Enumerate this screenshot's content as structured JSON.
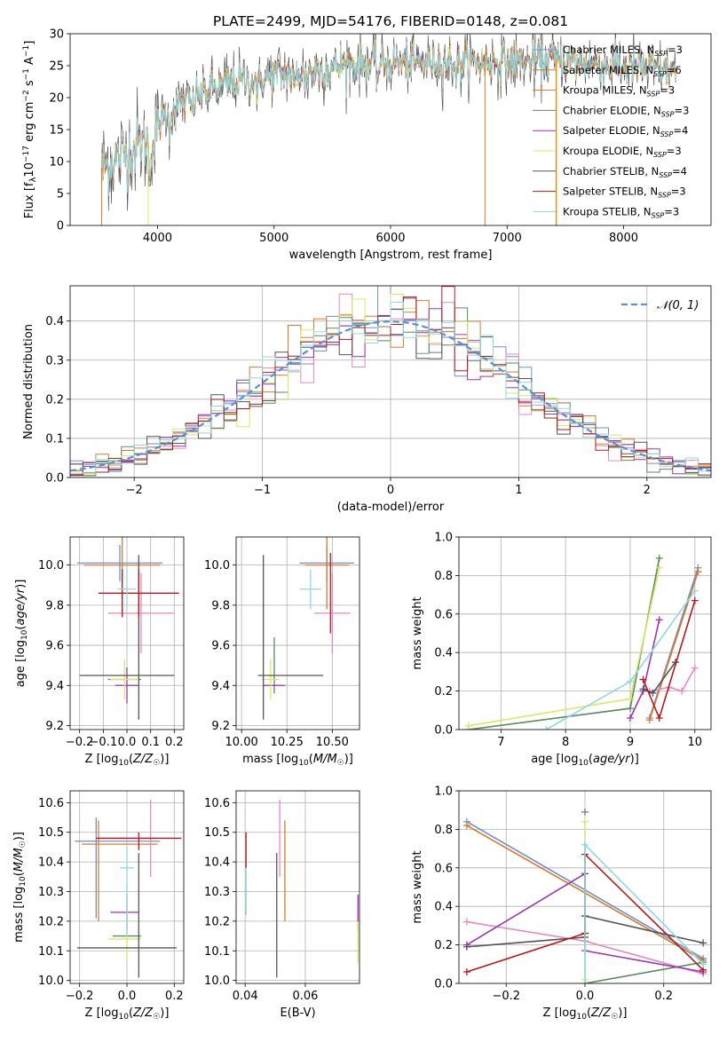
{
  "title": "PLATE=2499, MJD=54176, FIBERID=0148, z=0.081",
  "colors": {
    "c0": "#6f8fd0",
    "c1": "#d97a2b",
    "c2": "#e68ac0",
    "c3": "#5a8a5e",
    "c4": "#9b35b5",
    "c5": "#d8e86a",
    "c6": "#555555",
    "c7": "#b51a1a",
    "c8": "#8fd8e0"
  },
  "chart_data": [
    {
      "id": "spectrum",
      "type": "line",
      "xlabel": "wavelength [Angstrom, rest frame]",
      "ylabel": "Flux [f_λ 10^-17 erg cm^-2 s^-1 A^-1]",
      "xlim": [
        3250,
        8750
      ],
      "ylim": [
        0,
        30
      ],
      "xticks": [
        4000,
        5000,
        6000,
        7000,
        8000
      ],
      "yticks": [
        0,
        5,
        10,
        15,
        20,
        25,
        30
      ],
      "legend_position": "upper right",
      "series": [
        {
          "name": "Chabrier MILES, N_SSP=3",
          "color": "c0"
        },
        {
          "name": "Salpeter MILES, N_SSP=6",
          "color": "c1"
        },
        {
          "name": "Kroupa MILES, N_SSP=3",
          "color": "c1"
        },
        {
          "name": "Chabrier ELODIE, N_SSP=3",
          "color": "c3"
        },
        {
          "name": "Salpeter ELODIE, N_SSP=4",
          "color": "c4"
        },
        {
          "name": "Kroupa ELODIE, N_SSP=3",
          "color": "c5"
        },
        {
          "name": "Chabrier STELIB, N_SSP=4",
          "color": "c6"
        },
        {
          "name": "Salpeter STELIB, N_SSP=3",
          "color": "c7"
        },
        {
          "name": "Kroupa STELIB, N_SSP=3",
          "color": "c8"
        }
      ],
      "continuum": [
        [
          3520,
          9
        ],
        [
          3700,
          11
        ],
        [
          3900,
          13
        ],
        [
          4000,
          16
        ],
        [
          4100,
          18
        ],
        [
          4300,
          20
        ],
        [
          4500,
          21.5
        ],
        [
          4700,
          22.5
        ],
        [
          5000,
          23.5
        ],
        [
          5300,
          24
        ],
        [
          5600,
          25
        ],
        [
          6000,
          25.5
        ],
        [
          6500,
          25.5
        ],
        [
          7000,
          25.5
        ],
        [
          7400,
          26
        ],
        [
          7800,
          25
        ],
        [
          8200,
          24.5
        ],
        [
          8450,
          24
        ]
      ]
    },
    {
      "id": "residuals",
      "type": "histogram",
      "xlabel": "(data-model)/error",
      "ylabel": "Normed distribution",
      "xlim": [
        -2.5,
        2.5
      ],
      "ylim": [
        0,
        0.49
      ],
      "xticks": [
        -2,
        -1,
        0,
        1,
        2
      ],
      "xticklabels": [
        "−2",
        "−1",
        "0",
        "1",
        "2"
      ],
      "yticks": [
        0.0,
        0.1,
        0.2,
        0.3,
        0.4
      ],
      "yticklabels": [
        "0.0",
        "0.1",
        "0.2",
        "0.3",
        "0.4"
      ],
      "bin_width": 0.1,
      "reference": {
        "name": "𝒩(0, 1)",
        "color": "#5a8fd6"
      }
    },
    {
      "id": "age_vs_Z",
      "type": "errorbar",
      "xlabel": "Z [log10(Z/Z☉)]",
      "ylabel": "age [log10(age/yr)]",
      "xlim": [
        -0.24,
        0.24
      ],
      "ylim": [
        9.18,
        10.14
      ],
      "xticks": [
        -0.2,
        -0.1,
        0.0,
        0.1,
        0.2
      ],
      "xticklabels": [
        "−0.2",
        "−0.1",
        "0.0",
        "0.1",
        "0.2"
      ],
      "yticks": [
        9.2,
        9.4,
        9.6,
        9.8,
        10.0
      ],
      "yticklabels": [
        "9.2",
        "9.4",
        "9.6",
        "9.8",
        "10.0"
      ],
      "points": [
        {
          "x": -0.03,
          "xerr": 0.18,
          "y": 10.01,
          "yerr": 0.09,
          "color": "c0"
        },
        {
          "x": -0.02,
          "xerr": 0.16,
          "y": 10.0,
          "yerr": 0.26,
          "color": "c1"
        },
        {
          "x": 0.06,
          "xerr": 0.14,
          "y": 9.76,
          "yerr": 0.2,
          "color": "c2"
        },
        {
          "x": -0.01,
          "xerr": 0.07,
          "y": 9.43,
          "yerr": 0.0,
          "color": "c3"
        },
        {
          "x": 0.0,
          "xerr": 0.05,
          "y": 9.4,
          "yerr": 0.09,
          "color": "c4"
        },
        {
          "x": -0.01,
          "xerr": 0.06,
          "y": 9.43,
          "yerr": 0.1,
          "color": "c5"
        },
        {
          "x": 0.0,
          "xerr": 0.2,
          "y": 9.45,
          "yerr": 0.0,
          "color": "c6"
        },
        {
          "x": 0.05,
          "xerr": 0.0,
          "y": 9.64,
          "yerr": 0.41,
          "color": "c6"
        },
        {
          "x": 0.05,
          "xerr": 0.17,
          "y": 9.86,
          "yerr": 0.12,
          "color": "c7"
        },
        {
          "x": -0.02,
          "xerr": 0.0,
          "y": 9.86,
          "yerr": 0.12,
          "color": "c7"
        },
        {
          "x": 0.0,
          "xerr": 0.04,
          "y": 9.88,
          "yerr": 0.1,
          "color": "c8"
        }
      ]
    },
    {
      "id": "age_vs_mass",
      "type": "errorbar",
      "xlabel": "mass [log10(M/M☉)]",
      "ylabel": "",
      "xlim": [
        9.97,
        10.65
      ],
      "ylim": [
        9.18,
        10.14
      ],
      "xticks": [
        10.0,
        10.25,
        10.5
      ],
      "xticklabels": [
        "10.00",
        "10.25",
        "10.50"
      ],
      "yticks": [
        9.2,
        9.4,
        9.6,
        9.8,
        10.0
      ],
      "yticklabels": [
        "9.2",
        "9.4",
        "9.6",
        "9.8",
        "10.0"
      ],
      "points": [
        {
          "x": 10.47,
          "xerr": 0.15,
          "y": 10.01,
          "yerr": 0.09,
          "color": "c0"
        },
        {
          "x": 10.47,
          "xerr": 0.12,
          "y": 10.0,
          "yerr": 0.22,
          "color": "c1"
        },
        {
          "x": 10.5,
          "xerr": 0.1,
          "y": 9.76,
          "yerr": 0.2,
          "color": "c2"
        },
        {
          "x": 10.18,
          "xerr": 0.0,
          "y": 9.5,
          "yerr": 0.14,
          "color": "c3"
        },
        {
          "x": 10.18,
          "xerr": 0.06,
          "y": 9.4,
          "yerr": 0.0,
          "color": "c4"
        },
        {
          "x": 10.16,
          "xerr": 0.05,
          "y": 9.43,
          "yerr": 0.1,
          "color": "c5"
        },
        {
          "x": 10.27,
          "xerr": 0.18,
          "y": 9.45,
          "yerr": 0.0,
          "color": "c6"
        },
        {
          "x": 10.12,
          "xerr": 0.0,
          "y": 9.64,
          "yerr": 0.41,
          "color": "c6"
        },
        {
          "x": 10.49,
          "xerr": 0.0,
          "y": 9.86,
          "yerr": 0.2,
          "color": "c7"
        },
        {
          "x": 10.38,
          "xerr": 0.06,
          "y": 9.88,
          "yerr": 0.1,
          "color": "c8"
        }
      ]
    },
    {
      "id": "weight_vs_age",
      "type": "line",
      "xlabel": "age [log10(age/yr)]",
      "ylabel": "mass weight",
      "xlim": [
        6.35,
        10.25
      ],
      "ylim": [
        0,
        1
      ],
      "xticks": [
        7,
        8,
        9,
        10
      ],
      "xticklabels": [
        "7",
        "8",
        "9",
        "10"
      ],
      "yticks": [
        0.0,
        0.2,
        0.4,
        0.6,
        0.8,
        1.0
      ],
      "yticklabels": [
        "0.0",
        "0.2",
        "0.4",
        "0.6",
        "0.8",
        "1.0"
      ],
      "series": [
        {
          "color": "c0",
          "x": [
            9.3,
            10.05
          ],
          "y": [
            0.06,
            0.84
          ]
        },
        {
          "color": "c1",
          "x": [
            9.3,
            10.05
          ],
          "y": [
            0.05,
            0.82
          ]
        },
        {
          "color": "c2",
          "x": [
            9.3,
            9.6,
            9.8,
            10.0
          ],
          "y": [
            0.2,
            0.22,
            0.2,
            0.32
          ]
        },
        {
          "color": "c3",
          "x": [
            6.5,
            9.0,
            9.45
          ],
          "y": [
            0.0,
            0.11,
            0.89
          ]
        },
        {
          "color": "c4",
          "x": [
            9.0,
            9.2,
            9.45
          ],
          "y": [
            0.06,
            0.2,
            0.57
          ]
        },
        {
          "color": "c5",
          "x": [
            6.5,
            9.0,
            9.45
          ],
          "y": [
            0.02,
            0.16,
            0.84
          ]
        },
        {
          "color": "c6",
          "x": [
            9.2,
            9.35,
            9.7
          ],
          "y": [
            0.21,
            0.19,
            0.35
          ]
        },
        {
          "color": "c7",
          "x": [
            9.2,
            9.45,
            10.0
          ],
          "y": [
            0.26,
            0.06,
            0.67
          ]
        },
        {
          "color": "c8",
          "x": [
            7.7,
            9.0,
            10.0
          ],
          "y": [
            0.0,
            0.25,
            0.72
          ]
        }
      ]
    },
    {
      "id": "mass_vs_Z",
      "type": "errorbar",
      "xlabel": "Z [log10(Z/Z☉)]",
      "ylabel": "mass [log10(M/M☉)]",
      "xlim": [
        -0.24,
        0.24
      ],
      "ylim": [
        9.99,
        10.64
      ],
      "xticks": [
        -0.2,
        0.0,
        0.2
      ],
      "xticklabels": [
        "−0.2",
        "0.0",
        "0.2"
      ],
      "yticks": [
        10.0,
        10.1,
        10.2,
        10.3,
        10.4,
        10.5,
        10.6
      ],
      "yticklabels": [
        "10.0",
        "10.1",
        "10.2",
        "10.3",
        "10.4",
        "10.5",
        "10.6"
      ],
      "points": [
        {
          "x": -0.13,
          "xerr": 0.0,
          "y": 10.38,
          "yerr": 0.17,
          "color": "c0"
        },
        {
          "x": -0.04,
          "xerr": 0.18,
          "y": 10.47,
          "yerr": 0.0,
          "color": "c0"
        },
        {
          "x": -0.12,
          "xerr": 0.0,
          "y": 10.37,
          "yerr": 0.17,
          "color": "c1"
        },
        {
          "x": -0.03,
          "xerr": 0.16,
          "y": 10.46,
          "yerr": 0.0,
          "color": "c1"
        },
        {
          "x": 0.1,
          "xerr": 0.0,
          "y": 10.48,
          "yerr": 0.13,
          "color": "c2"
        },
        {
          "x": 0.0,
          "xerr": 0.12,
          "y": 10.48,
          "yerr": 0.0,
          "color": "c2"
        },
        {
          "x": 0.0,
          "xerr": 0.06,
          "y": 10.15,
          "yerr": 0.0,
          "color": "c3"
        },
        {
          "x": -0.01,
          "xerr": 0.06,
          "y": 10.23,
          "yerr": 0.0,
          "color": "c4"
        },
        {
          "x": 0.0,
          "xerr": 0.0,
          "y": 10.23,
          "yerr": 0.06,
          "color": "c4"
        },
        {
          "x": -0.01,
          "xerr": 0.07,
          "y": 10.14,
          "yerr": 0.0,
          "color": "c5"
        },
        {
          "x": 0.0,
          "xerr": 0.0,
          "y": 10.2,
          "yerr": 0.13,
          "color": "c5"
        },
        {
          "x": 0.0,
          "xerr": 0.21,
          "y": 10.11,
          "yerr": 0.0,
          "color": "c6"
        },
        {
          "x": 0.05,
          "xerr": 0.0,
          "y": 10.22,
          "yerr": 0.21,
          "color": "c6"
        },
        {
          "x": 0.05,
          "xerr": 0.18,
          "y": 10.48,
          "yerr": 0.0,
          "color": "c7"
        },
        {
          "x": 0.05,
          "xerr": 0.0,
          "y": 10.47,
          "yerr": 0.03,
          "color": "c7"
        },
        {
          "x": 0.0,
          "xerr": 0.0,
          "y": 10.3,
          "yerr": 0.15,
          "color": "c8"
        },
        {
          "x": 0.0,
          "xerr": 0.03,
          "y": 10.38,
          "yerr": 0.0,
          "color": "c8"
        }
      ]
    },
    {
      "id": "mass_vs_EBV",
      "type": "errorbar",
      "xlabel": "E(B-V)",
      "ylabel": "",
      "xlim": [
        0.037,
        0.078
      ],
      "ylim": [
        9.99,
        10.64
      ],
      "xticks": [
        0.04,
        0.06
      ],
      "xticklabels": [
        "0.04",
        "0.06"
      ],
      "yticks": [
        10.0,
        10.1,
        10.2,
        10.3,
        10.4,
        10.5,
        10.6
      ],
      "yticklabels": [
        "10.0",
        "10.1",
        "10.2",
        "10.3",
        "10.4",
        "10.5",
        "10.6"
      ],
      "points": [
        {
          "x": 0.0403,
          "xerr": 0.0,
          "y": 10.44,
          "yerr": 0.06,
          "color": "c7"
        },
        {
          "x": 0.0403,
          "xerr": 0.0,
          "y": 10.3,
          "yerr": 0.08,
          "color": "c8"
        },
        {
          "x": 0.0505,
          "xerr": 0.0,
          "y": 10.22,
          "yerr": 0.21,
          "color": "c6"
        },
        {
          "x": 0.0515,
          "xerr": 0.0,
          "y": 10.48,
          "yerr": 0.13,
          "color": "c2"
        },
        {
          "x": 0.0532,
          "xerr": 0.0,
          "y": 10.37,
          "yerr": 0.17,
          "color": "c1"
        },
        {
          "x": 0.0775,
          "xerr": 0.0,
          "y": 10.23,
          "yerr": 0.06,
          "color": "c4"
        },
        {
          "x": 0.0775,
          "xerr": 0.0,
          "y": 10.13,
          "yerr": 0.07,
          "color": "c5"
        }
      ]
    },
    {
      "id": "weight_vs_Z",
      "type": "line",
      "xlabel": "Z [log10(Z/Z☉)]",
      "ylabel": "mass weight",
      "xlim": [
        -0.32,
        0.32
      ],
      "ylim": [
        0,
        1
      ],
      "xticks": [
        -0.2,
        0.0,
        0.2
      ],
      "xticklabels": [
        "−0.2",
        "0.0",
        "0.2"
      ],
      "yticks": [
        0.0,
        0.2,
        0.4,
        0.6,
        0.8,
        1.0
      ],
      "yticklabels": [
        "0.0",
        "0.2",
        "0.4",
        "0.6",
        "0.8",
        "1.0"
      ],
      "series": [
        {
          "color": "c0",
          "x": [
            -0.3,
            0.3
          ],
          "y": [
            0.84,
            0.13
          ]
        },
        {
          "color": "c1",
          "x": [
            -0.3,
            0.3
          ],
          "y": [
            0.82,
            0.12
          ]
        },
        {
          "color": "c2",
          "x": [
            -0.3,
            0.0,
            0.3
          ],
          "y": [
            0.32,
            0.22,
            0.05
          ]
        },
        {
          "color": "c3",
          "x": [
            0.0,
            0.3
          ],
          "y": [
            0.0,
            0.11
          ]
        },
        {
          "color": "c4",
          "x": [
            -0.3,
            0.0,
            0.0,
            0.3
          ],
          "y": [
            0.2,
            0.57,
            0.17,
            0.06
          ]
        },
        {
          "color": "c5",
          "x": [
            0.0,
            0.0
          ],
          "y": [
            0.02,
            0.84
          ]
        },
        {
          "color": "c6",
          "x": [
            -0.3,
            0.0,
            0.0,
            0.3
          ],
          "y": [
            0.19,
            0.24,
            0.35,
            0.21
          ]
        },
        {
          "color": "c7",
          "x": [
            -0.3,
            0.0,
            0.0,
            0.3
          ],
          "y": [
            0.06,
            0.26,
            0.67,
            0.07
          ]
        },
        {
          "color": "c8",
          "x": [
            0.0,
            0.0,
            0.3
          ],
          "y": [
            0.0,
            0.72,
            0.1
          ]
        }
      ],
      "extra_markers": [
        {
          "color": "c3",
          "x": 0.0,
          "y": 0.89
        }
      ]
    }
  ]
}
